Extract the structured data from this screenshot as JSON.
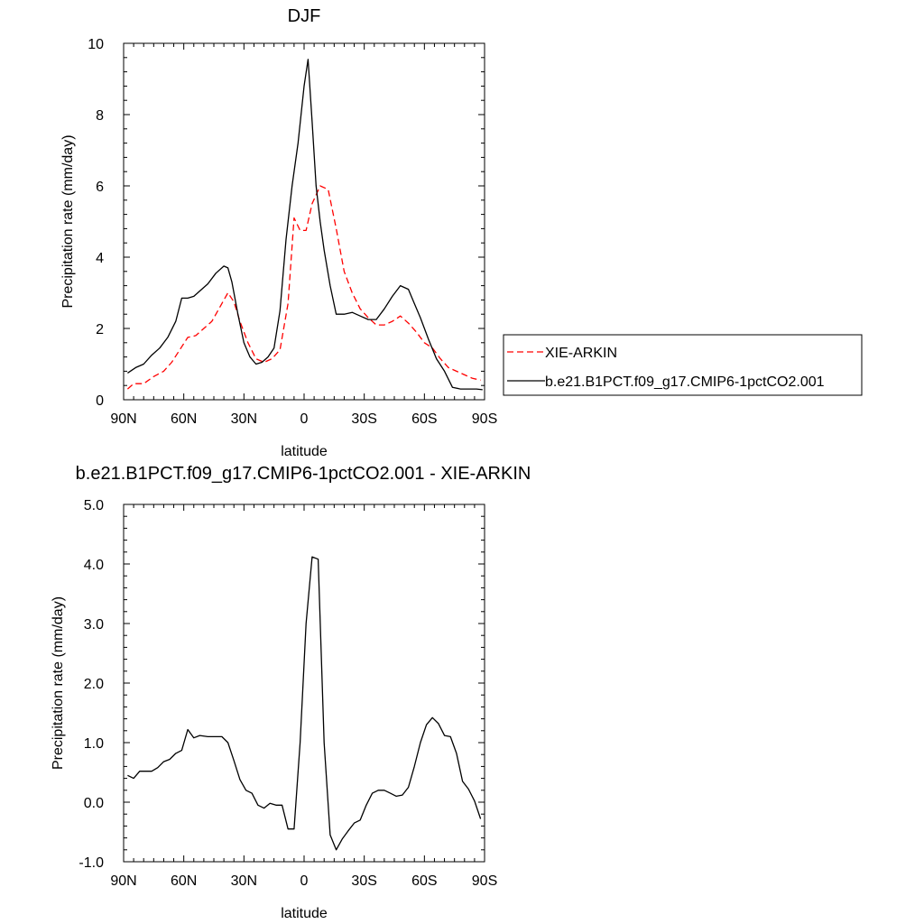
{
  "chart_data": [
    {
      "type": "line",
      "title": "DJF",
      "xlabel": "latitude",
      "ylabel": "Precipitation rate (mm/day)",
      "xlim": [
        90,
        -90
      ],
      "ylim": [
        0,
        10
      ],
      "xticks": [
        {
          "value": 90,
          "label": "90N"
        },
        {
          "value": 60,
          "label": "60N"
        },
        {
          "value": 30,
          "label": "30N"
        },
        {
          "value": 0,
          "label": "0"
        },
        {
          "value": -30,
          "label": "30S"
        },
        {
          "value": -60,
          "label": "60S"
        },
        {
          "value": -90,
          "label": "90S"
        }
      ],
      "yticks": [
        {
          "value": 0,
          "label": "0"
        },
        {
          "value": 2,
          "label": "2"
        },
        {
          "value": 4,
          "label": "4"
        },
        {
          "value": 6,
          "label": "6"
        },
        {
          "value": 8,
          "label": "8"
        },
        {
          "value": 10,
          "label": "10"
        }
      ],
      "series": [
        {
          "name": "XIE-ARKIN",
          "color": "#ff0000",
          "dash": true,
          "x": [
            88,
            85,
            80,
            75,
            70,
            66,
            62,
            58,
            54,
            50,
            46,
            42,
            38,
            35,
            32,
            28,
            24,
            20,
            16,
            12,
            8,
            5,
            2,
            -1,
            -4,
            -8,
            -12,
            -16,
            -20,
            -24,
            -28,
            -32,
            -36,
            -40,
            -44,
            -48,
            -52,
            -56,
            -60,
            -64,
            -68,
            -72,
            -76,
            -80,
            -84,
            -88
          ],
          "y": [
            0.3,
            0.45,
            0.45,
            0.65,
            0.8,
            1.05,
            1.4,
            1.75,
            1.8,
            2.0,
            2.2,
            2.6,
            3.0,
            2.75,
            2.2,
            1.6,
            1.15,
            1.05,
            1.15,
            1.4,
            2.7,
            5.1,
            4.75,
            4.75,
            5.5,
            6.0,
            5.9,
            4.8,
            3.6,
            3.0,
            2.55,
            2.3,
            2.1,
            2.1,
            2.2,
            2.35,
            2.15,
            1.9,
            1.6,
            1.45,
            1.15,
            0.9,
            0.8,
            0.7,
            0.6,
            0.55
          ]
        },
        {
          "name": "b.e21.B1PCT.f09_g17.CMIP6-1pctCO2.001",
          "color": "#000000",
          "dash": false,
          "x": [
            88,
            84,
            80,
            76,
            72,
            68,
            64,
            61,
            58,
            55,
            52,
            48,
            44,
            40,
            38,
            36,
            33,
            30,
            27,
            24,
            21,
            18,
            15,
            12,
            9,
            6,
            3,
            0,
            -2,
            -4,
            -6,
            -8,
            -10,
            -13,
            -16,
            -20,
            -24,
            -28,
            -32,
            -36,
            -40,
            -44,
            -48,
            -52,
            -55,
            -58,
            -62,
            -66,
            -70,
            -74,
            -78,
            -82,
            -86,
            -89
          ],
          "y": [
            0.75,
            0.9,
            1.0,
            1.25,
            1.45,
            1.75,
            2.2,
            2.85,
            2.85,
            2.9,
            3.05,
            3.25,
            3.55,
            3.75,
            3.7,
            3.3,
            2.4,
            1.6,
            1.2,
            1.0,
            1.05,
            1.2,
            1.45,
            2.5,
            4.5,
            6.0,
            7.2,
            8.8,
            9.55,
            7.8,
            6.0,
            5.0,
            4.2,
            3.2,
            2.4,
            2.4,
            2.45,
            2.35,
            2.25,
            2.25,
            2.55,
            2.9,
            3.2,
            3.1,
            2.7,
            2.3,
            1.7,
            1.15,
            0.8,
            0.35,
            0.3,
            0.3,
            0.3,
            0.28
          ]
        }
      ],
      "legend": [
        {
          "label": "XIE-ARKIN",
          "color": "#ff0000",
          "dash": true
        },
        {
          "label": "b.e21.B1PCT.f09_g17.CMIP6-1pctCO2.001",
          "color": "#000000",
          "dash": false
        }
      ]
    },
    {
      "type": "line",
      "title": "b.e21.B1PCT.f09_g17.CMIP6-1pctCO2.001 - XIE-ARKIN",
      "xlabel": "latitude",
      "ylabel": "Precipitation rate (mm/day)",
      "xlim": [
        90,
        -90
      ],
      "ylim": [
        -1,
        5
      ],
      "xticks": [
        {
          "value": 90,
          "label": "90N"
        },
        {
          "value": 60,
          "label": "60N"
        },
        {
          "value": 30,
          "label": "30N"
        },
        {
          "value": 0,
          "label": "0"
        },
        {
          "value": -30,
          "label": "30S"
        },
        {
          "value": -60,
          "label": "60S"
        },
        {
          "value": -90,
          "label": "90S"
        }
      ],
      "yticks": [
        {
          "value": -1,
          "label": "-1.0"
        },
        {
          "value": 0,
          "label": "0.0"
        },
        {
          "value": 1,
          "label": "1.0"
        },
        {
          "value": 2,
          "label": "2.0"
        },
        {
          "value": 3,
          "label": "3.0"
        },
        {
          "value": 4,
          "label": "4.0"
        },
        {
          "value": 5,
          "label": "5.0"
        }
      ],
      "series": [
        {
          "name": "b.e21.B1PCT.f09_g17.CMIP6-1pctCO2.001 - XIE-ARKIN",
          "color": "#000000",
          "dash": false,
          "x": [
            88,
            85,
            82,
            79,
            76,
            73,
            70,
            67,
            64,
            61,
            58,
            55,
            52,
            48,
            44,
            41,
            38,
            35,
            32,
            29,
            26,
            23,
            20,
            17,
            14,
            11,
            8,
            5,
            2,
            -1,
            -4,
            -7,
            -10,
            -13,
            -16,
            -19,
            -22,
            -25,
            -28,
            -31,
            -34,
            -37,
            -40,
            -43,
            -46,
            -49,
            -52,
            -55,
            -58,
            -61,
            -64,
            -67,
            -70,
            -73,
            -76,
            -79,
            -82,
            -85,
            -88
          ],
          "y": [
            0.45,
            0.4,
            0.52,
            0.52,
            0.52,
            0.58,
            0.68,
            0.72,
            0.82,
            0.87,
            1.22,
            1.08,
            1.12,
            1.1,
            1.1,
            1.1,
            1.0,
            0.7,
            0.38,
            0.2,
            0.15,
            -0.05,
            -0.1,
            -0.02,
            -0.05,
            -0.05,
            -0.45,
            -0.45,
            1.0,
            3.0,
            4.12,
            4.08,
            1.0,
            -0.55,
            -0.8,
            -0.62,
            -0.48,
            -0.35,
            -0.3,
            -0.05,
            0.15,
            0.2,
            0.2,
            0.15,
            0.1,
            0.12,
            0.25,
            0.6,
            1.0,
            1.3,
            1.42,
            1.32,
            1.12,
            1.1,
            0.82,
            0.35,
            0.22,
            0.02,
            -0.28
          ]
        }
      ],
      "legend": []
    }
  ]
}
